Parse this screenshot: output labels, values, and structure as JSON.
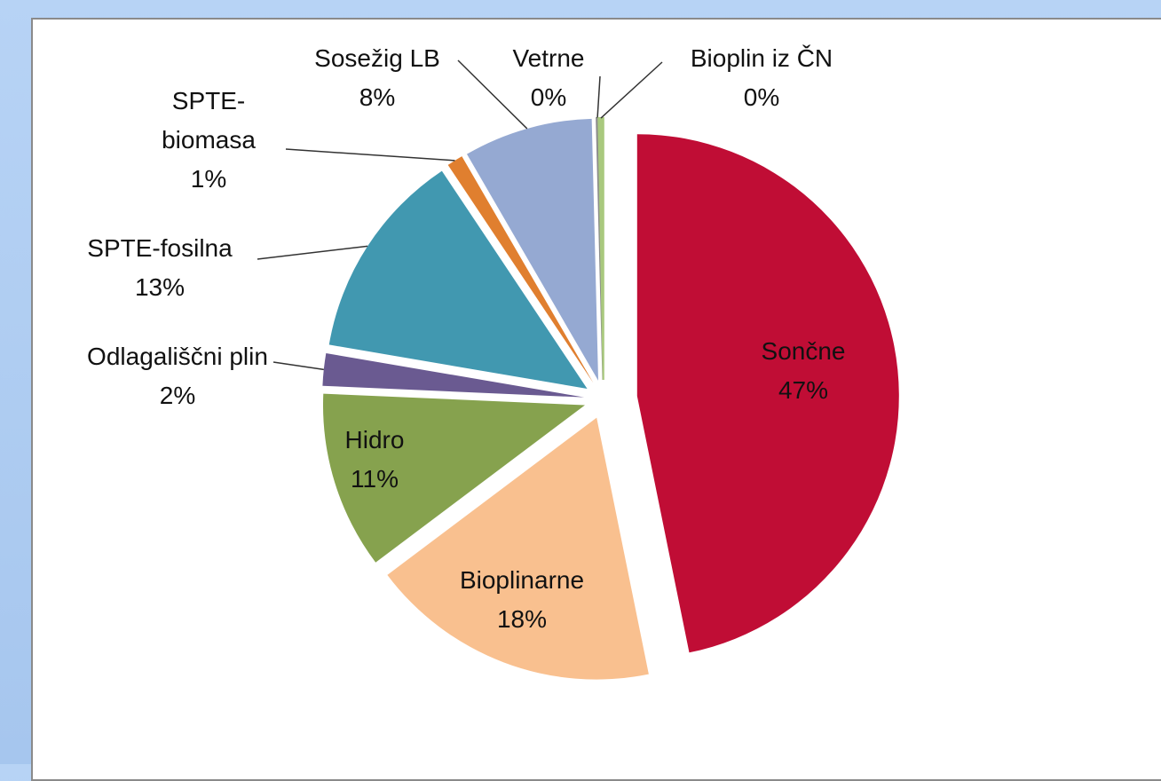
{
  "chart_data": {
    "type": "pie",
    "categories": [
      "Sončne",
      "Bioplinarne",
      "Hidro",
      "Odlagališčni plin",
      "SPTE-fosilna",
      "SPTE-biomasa",
      "Sosežig LB",
      "Vetrne",
      "Bioplin iz ČN"
    ],
    "values": [
      47,
      18,
      11,
      2,
      13,
      1,
      8,
      0.1,
      0.3
    ],
    "value_labels": [
      "47%",
      "18%",
      "11%",
      "2%",
      "13%",
      "1%",
      "8%",
      "0%",
      "0%"
    ],
    "colors": [
      "#c00d35",
      "#f9c08f",
      "#86a24e",
      "#6a5a91",
      "#4198b0",
      "#e07f2f",
      "#95a9d2",
      "#8c8c8c",
      "#a9c97e"
    ]
  }
}
